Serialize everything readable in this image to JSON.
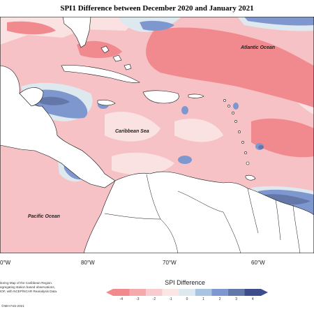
{
  "title": "SPI1 Difference between December 2020 and January 2021",
  "labels": {
    "atlantic": "Atlantic Ocean",
    "caribbean": "Caribbean Sea",
    "pacific": "Pacific Ocean"
  },
  "longitudes": [
    "0°W",
    "80°W",
    "70°W",
    "60°W"
  ],
  "credits": [
    "itoring Map of the Caribbean Region.",
    "egregating station based observations,",
    "IOF, with NCEP/NCAR Reanalysis Data."
  ],
  "copyright": "©IMH Feb-2021",
  "legend": {
    "title": "SPI Difference",
    "ticks": [
      "-4",
      "-3",
      "-2",
      "-1",
      "0",
      "1",
      "2",
      "3",
      "4"
    ],
    "colors": [
      "#f08a8f",
      "#f4a9ac",
      "#f8cccf",
      "#fbe6e6",
      "#dde9ef",
      "#a9c4e2",
      "#7f97cf",
      "#6477a9",
      "#3f4c8c"
    ]
  }
}
